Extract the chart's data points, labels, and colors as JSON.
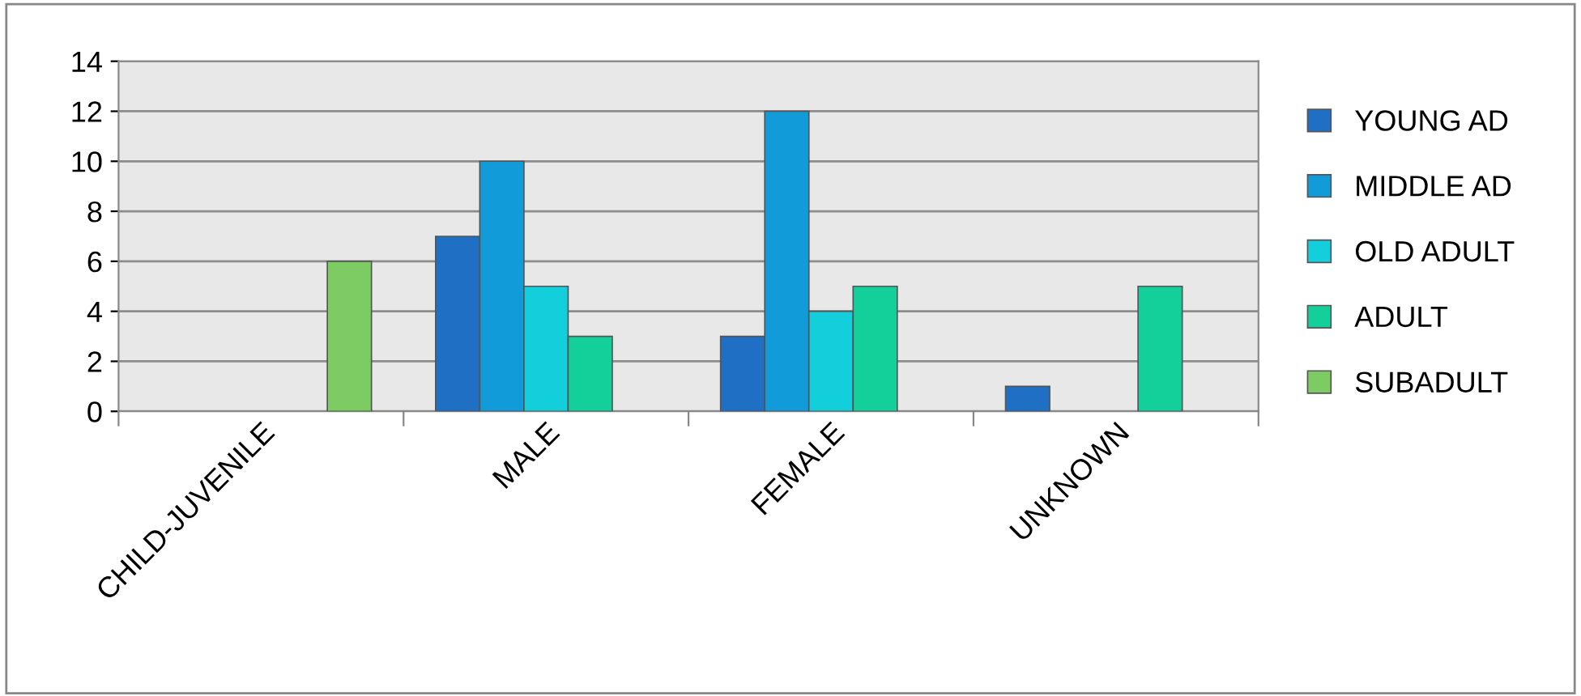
{
  "chart_data": {
    "type": "bar",
    "categories": [
      "CHILD-JUVENILE",
      "MALE",
      "FEMALE",
      "UNKNOWN"
    ],
    "series": [
      {
        "name": "YOUNG AD",
        "color": "#1f6fc5",
        "values": [
          null,
          7,
          3,
          1
        ]
      },
      {
        "name": "MIDDLE AD",
        "color": "#119bd8",
        "values": [
          null,
          10,
          12,
          null
        ]
      },
      {
        "name": "OLD ADULT",
        "color": "#12cfdb",
        "values": [
          null,
          5,
          4,
          null
        ]
      },
      {
        "name": "ADULT",
        "color": "#13cf9a",
        "values": [
          null,
          3,
          5,
          5
        ]
      },
      {
        "name": "SUBADULT",
        "color": "#7dcb63",
        "values": [
          6,
          null,
          null,
          null
        ]
      }
    ],
    "ylim": [
      0,
      14
    ],
    "yticks": [
      0,
      2,
      4,
      6,
      8,
      10,
      12,
      14
    ],
    "grid": "y",
    "legend": "right"
  }
}
